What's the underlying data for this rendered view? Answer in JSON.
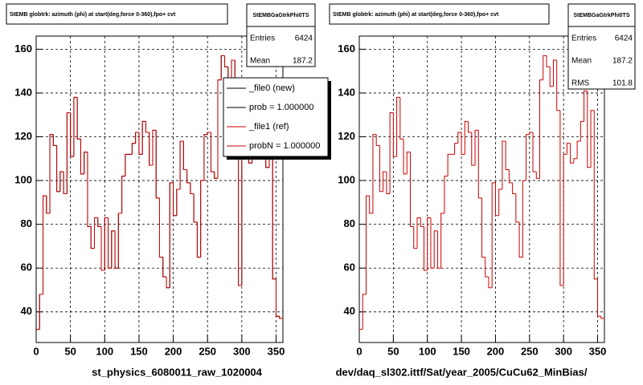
{
  "chart_data": [
    {
      "type": "histogram",
      "title": "StEMB globtrk: azimuth (phi) at start(deg,force 0-360),fpo+ cvt",
      "x_label": "st_physics_6080011_raw_1020004",
      "bins": [
        0,
        5,
        10,
        15,
        20,
        25,
        30,
        35,
        40,
        45,
        50,
        55,
        60,
        65,
        70,
        75,
        80,
        85,
        90,
        95,
        100,
        105,
        110,
        115,
        120,
        125,
        130,
        135,
        140,
        145,
        150,
        155,
        160,
        165,
        170,
        175,
        180,
        185,
        190,
        195,
        200,
        205,
        210,
        215,
        220,
        225,
        230,
        235,
        240,
        245,
        250,
        255,
        260,
        265,
        270,
        275,
        280,
        285,
        290,
        295,
        300,
        305,
        310,
        315,
        320,
        325,
        330,
        335,
        340,
        345,
        350,
        355,
        360
      ],
      "series": [
        {
          "name": "_file0 (new)",
          "color": "#000000",
          "values": [
            32,
            48,
            93,
            85,
            121,
            116,
            95,
            104,
            94,
            131,
            111,
            138,
            119,
            103,
            113,
            79,
            69,
            83,
            79,
            59,
            83,
            60,
            77,
            60,
            85,
            102,
            112,
            112,
            117,
            122,
            112,
            127,
            122,
            107,
            123,
            92,
            65,
            56,
            51,
            99,
            84,
            96,
            118,
            105,
            99,
            94,
            81,
            65,
            100,
            121,
            122,
            104,
            101,
            146,
            157,
            152,
            143,
            155,
            132,
            52,
            112,
            117,
            108,
            110,
            118,
            127,
            141,
            106,
            132,
            55,
            38,
            37
          ]
        },
        {
          "name": "_file1 (ref)",
          "color": "#cc0000",
          "values": [
            32,
            48,
            93,
            85,
            121,
            116,
            95,
            104,
            94,
            131,
            111,
            138,
            119,
            103,
            113,
            79,
            69,
            83,
            79,
            59,
            83,
            60,
            77,
            60,
            85,
            102,
            112,
            112,
            117,
            122,
            112,
            127,
            122,
            107,
            123,
            92,
            65,
            56,
            51,
            99,
            84,
            96,
            118,
            105,
            99,
            94,
            81,
            65,
            100,
            121,
            122,
            104,
            101,
            146,
            157,
            152,
            143,
            155,
            132,
            52,
            112,
            117,
            108,
            110,
            118,
            127,
            141,
            106,
            132,
            55,
            38,
            37
          ]
        }
      ],
      "legend_notes": [
        "prob = 1.000000",
        "probN = 1.000000"
      ],
      "stats": {
        "title": "StEMBGaGtrkPhi0TS",
        "rows": [
          {
            "label": "Entries",
            "value": 6424
          },
          {
            "label": "Mean",
            "value": 187.2
          }
        ]
      },
      "xlim": [
        0,
        360
      ],
      "xticks": [
        0,
        50,
        100,
        150,
        200,
        250,
        300,
        350
      ],
      "ylim": [
        26,
        166
      ],
      "yticks": [
        40,
        60,
        80,
        100,
        120,
        140,
        160
      ],
      "grid": true
    },
    {
      "type": "histogram",
      "title": "StEMB globtrk: azimuth (phi) at start(deg,force 0-360),fpo+ cvt",
      "x_label": "dev/daq_sl302.ittf/Sat/year_2005/CuCu62_MinBias/",
      "bins": [
        0,
        5,
        10,
        15,
        20,
        25,
        30,
        35,
        40,
        45,
        50,
        55,
        60,
        65,
        70,
        75,
        80,
        85,
        90,
        95,
        100,
        105,
        110,
        115,
        120,
        125,
        130,
        135,
        140,
        145,
        150,
        155,
        160,
        165,
        170,
        175,
        180,
        185,
        190,
        195,
        200,
        205,
        210,
        215,
        220,
        225,
        230,
        235,
        240,
        245,
        250,
        255,
        260,
        265,
        270,
        275,
        280,
        285,
        290,
        295,
        300,
        305,
        310,
        315,
        320,
        325,
        330,
        335,
        340,
        345,
        350,
        355,
        360
      ],
      "series": [
        {
          "color": "#cc0000",
          "values": [
            32,
            48,
            93,
            85,
            121,
            116,
            95,
            104,
            94,
            131,
            111,
            138,
            119,
            103,
            113,
            79,
            69,
            83,
            79,
            59,
            83,
            60,
            77,
            60,
            85,
            102,
            112,
            112,
            117,
            122,
            112,
            127,
            122,
            107,
            123,
            92,
            65,
            56,
            51,
            99,
            84,
            96,
            118,
            105,
            99,
            94,
            81,
            65,
            100,
            121,
            122,
            104,
            101,
            146,
            157,
            152,
            143,
            155,
            132,
            52,
            112,
            117,
            108,
            110,
            118,
            127,
            141,
            106,
            132,
            55,
            38,
            37
          ]
        }
      ],
      "stats": {
        "title": "StEMBGaGtrkPhi0TS",
        "rows": [
          {
            "label": "Entries",
            "value": 6424
          },
          {
            "label": "Mean",
            "value": 187.2
          },
          {
            "label": "RMS",
            "value": 101.8
          }
        ]
      },
      "xlim": [
        0,
        360
      ],
      "xticks": [
        0,
        50,
        100,
        150,
        200,
        250,
        300,
        350
      ],
      "ylim": [
        26,
        166
      ],
      "yticks": [
        40,
        60,
        80,
        100,
        120,
        140,
        160
      ],
      "grid": true
    }
  ]
}
